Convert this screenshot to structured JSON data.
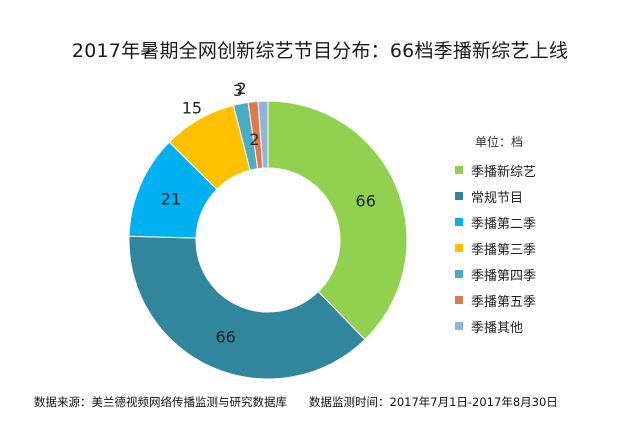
{
  "chart_data": {
    "type": "pie",
    "title": "2017年暑期全网创新综艺节目分布：66档季播新综艺上线",
    "unit_label": "单位：档",
    "series": [
      {
        "name": "季播新综艺",
        "value": 66,
        "color": "#92D050"
      },
      {
        "name": "常规节目",
        "value": 66,
        "color": "#31859C"
      },
      {
        "name": "季播第二季",
        "value": 21,
        "color": "#00B0F0"
      },
      {
        "name": "季播第三季",
        "value": 15,
        "color": "#FFC000"
      },
      {
        "name": "季播第四季",
        "value": 3,
        "color": "#4BACC6"
      },
      {
        "name": "季播第五季",
        "value": 2,
        "color": "#E07A4A"
      },
      {
        "name": "季播其他",
        "value": 2,
        "color": "#95B3D7"
      }
    ],
    "legend_position": "right"
  },
  "footer": {
    "source": "数据来源：美兰德视频网络传播监测与研究数据库",
    "period": "数据监测时间：2017年7月1日-2017年8月30日"
  }
}
